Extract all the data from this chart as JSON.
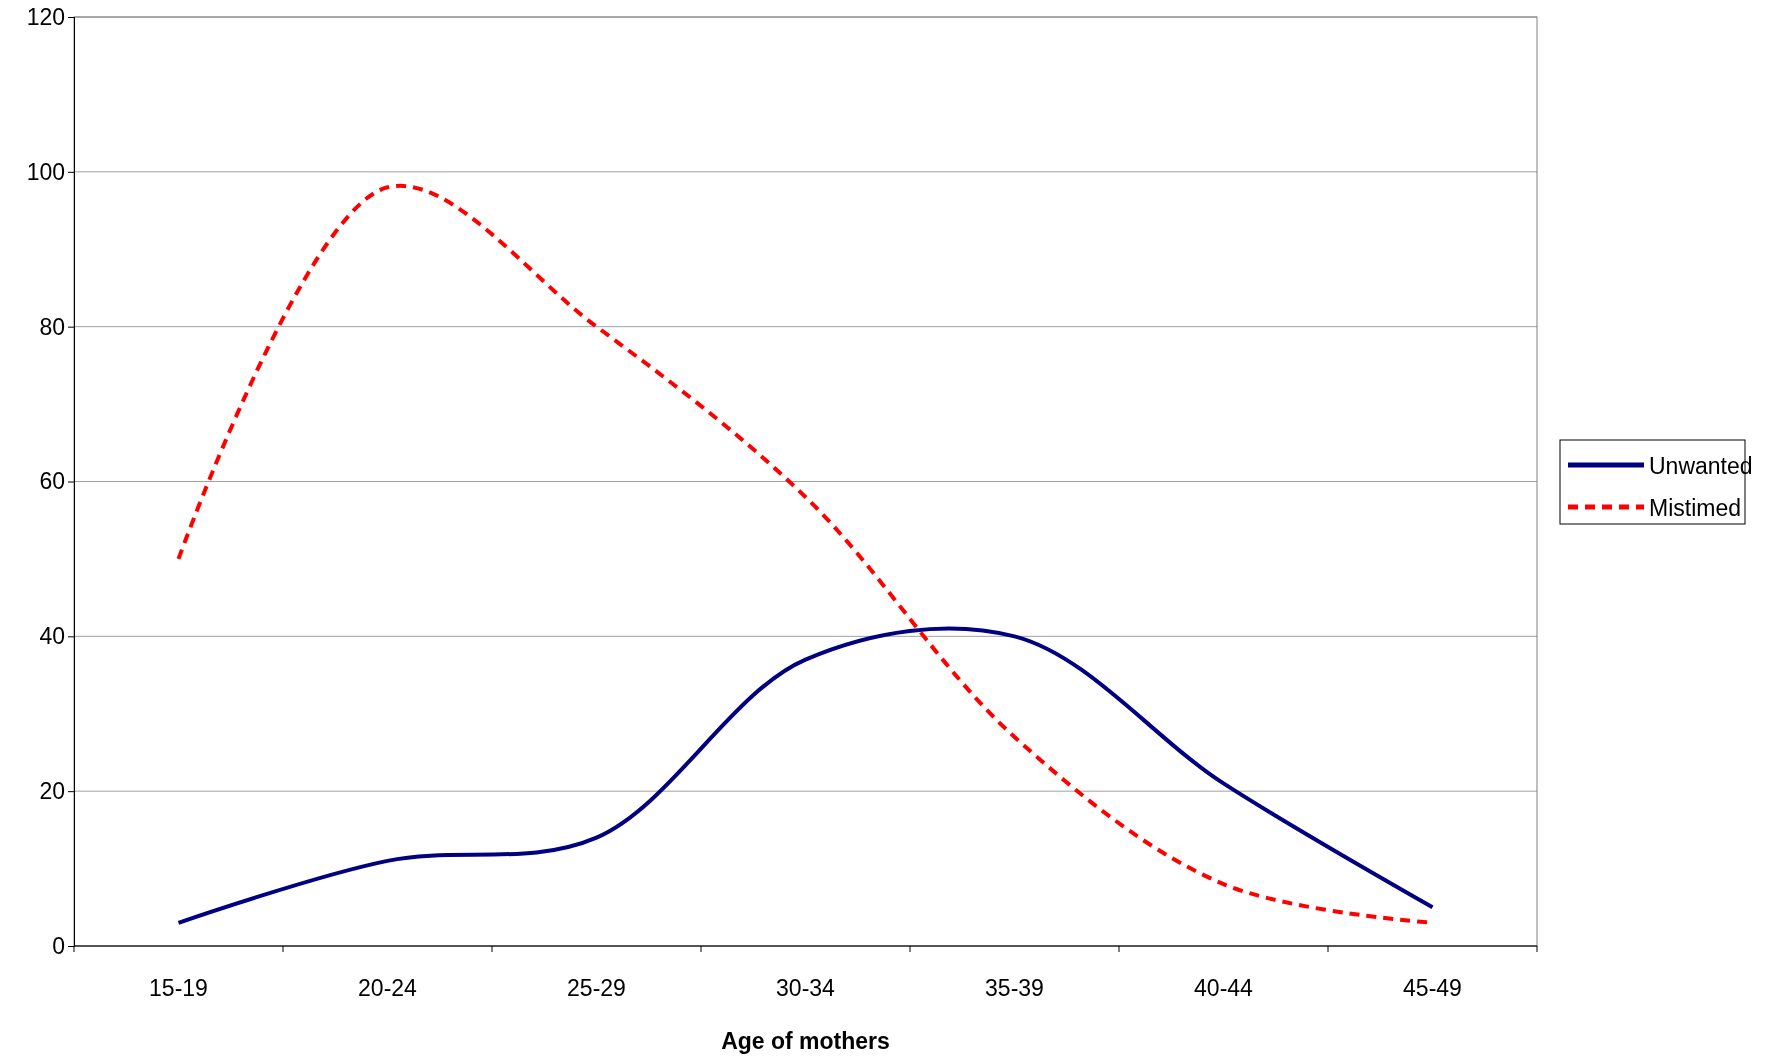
{
  "chart_data": {
    "type": "line",
    "xlabel": "Age of mothers",
    "categories": [
      "15-19",
      "20-24",
      "25-29",
      "30-34",
      "35-39",
      "40-44",
      "45-49"
    ],
    "series": [
      {
        "name": "Unwanted",
        "color": "#000080",
        "line_style": "solid",
        "values": [
          3,
          11,
          14,
          37,
          40,
          21,
          5
        ]
      },
      {
        "name": "Mistimed",
        "color": "#ff0000",
        "line_style": "dashed",
        "values": [
          50,
          98,
          80,
          58,
          27,
          8,
          3
        ]
      }
    ],
    "ylim": [
      0,
      120
    ],
    "yticks": [
      0,
      20,
      40,
      60,
      80,
      100,
      120
    ],
    "grid": "y",
    "legend": "right",
    "marker": "none"
  }
}
